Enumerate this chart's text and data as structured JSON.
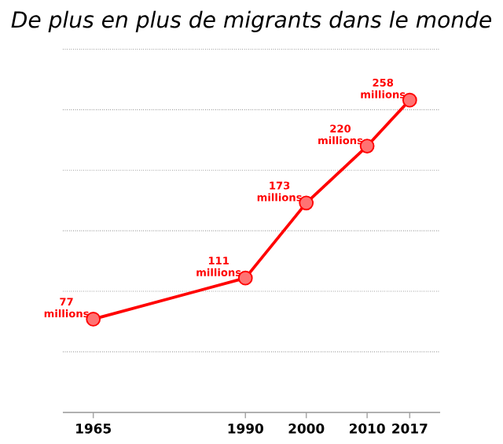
{
  "chart_data": {
    "type": "line",
    "title": "De plus en plus de migrants dans le monde",
    "x": [
      1965,
      1990,
      2000,
      2010,
      2017
    ],
    "series": [
      {
        "color": "#ff0000",
        "values": [
          77,
          111,
          173,
          220,
          258
        ],
        "value_labels": [
          "77 millions",
          "111 millions",
          "173 millions",
          "220 millions",
          "258 millions"
        ]
      }
    ],
    "xlim": [
      1960,
      2022
    ],
    "xticks": [
      1965,
      1990,
      2000,
      2010,
      2017
    ],
    "ylim": [
      0,
      300
    ],
    "yticks": [
      {
        "value": 50,
        "label": null
      },
      {
        "value": 100,
        "label": null
      },
      {
        "value": 150,
        "label": null
      },
      {
        "value": 200,
        "label": null
      },
      {
        "value": 250,
        "label": null
      },
      {
        "value": 300,
        "label": null
      }
    ],
    "grid": "y",
    "marker": "circle",
    "line_style": "solid",
    "tick_labels": "x"
  }
}
